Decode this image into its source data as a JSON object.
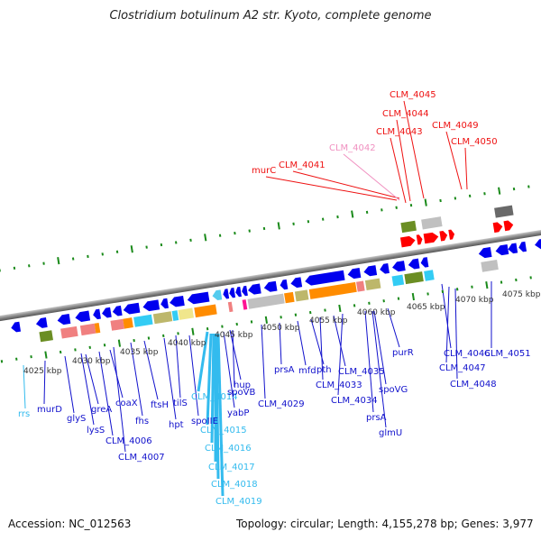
{
  "title": "Clostridium botulinum A2 str. Kyoto, complete genome",
  "footer": {
    "accession": "Accession: NC_012563",
    "summary": "Topology: circular; Length: 4,155,278 bp; Genes: 3,977"
  },
  "colors": {
    "backbone": "#8a8a8a",
    "ruler": "#1a8a1a",
    "forward_label": "#ee1111",
    "forward_pseudo_label": "#f090c0",
    "reverse_label": "#1111cc",
    "rna_label": "#33bbee"
  },
  "ruler_labels": [
    "4025 kbp",
    "4030 kbp",
    "4035 kbp",
    "4040 kbp",
    "4045 kbp",
    "4050 kbp",
    "4055 kbp",
    "4060 kbp",
    "4065 kbp",
    "4070 kbp",
    "4075 kbp"
  ],
  "forward_labels": [
    {
      "text": "murC",
      "color": "red"
    },
    {
      "text": "CLM_4041",
      "color": "red"
    },
    {
      "text": "CLM_4042",
      "color": "pink"
    },
    {
      "text": "CLM_4043",
      "color": "red"
    },
    {
      "text": "CLM_4044",
      "color": "red"
    },
    {
      "text": "CLM_4045",
      "color": "red"
    },
    {
      "text": "CLM_4049",
      "color": "red"
    },
    {
      "text": "CLM_4050",
      "color": "red"
    }
  ],
  "reverse_labels": [
    {
      "text": "rrs",
      "color": "cyan"
    },
    {
      "text": "murD",
      "color": "blue"
    },
    {
      "text": "glyS",
      "color": "blue"
    },
    {
      "text": "lysS",
      "color": "blue"
    },
    {
      "text": "greA",
      "color": "blue"
    },
    {
      "text": "CLM_4006",
      "color": "blue"
    },
    {
      "text": "coaX",
      "color": "blue"
    },
    {
      "text": "CLM_4007",
      "color": "blue"
    },
    {
      "text": "fhs",
      "color": "blue"
    },
    {
      "text": "ftsH",
      "color": "blue"
    },
    {
      "text": "hpt",
      "color": "blue"
    },
    {
      "text": "tilS",
      "color": "blue"
    },
    {
      "text": "spoIIE",
      "color": "blue"
    },
    {
      "text": "CLM_4014",
      "color": "cyan"
    },
    {
      "text": "CLM_4015",
      "color": "cyan"
    },
    {
      "text": "CLM_4016",
      "color": "cyan"
    },
    {
      "text": "CLM_4017",
      "color": "cyan"
    },
    {
      "text": "CLM_4018",
      "color": "cyan"
    },
    {
      "text": "CLM_4019",
      "color": "cyan"
    },
    {
      "text": "yabP",
      "color": "blue"
    },
    {
      "text": "hup",
      "color": "blue"
    },
    {
      "text": "spoVB",
      "color": "blue"
    },
    {
      "text": "CLM_4029",
      "color": "blue"
    },
    {
      "text": "prsA",
      "color": "blue"
    },
    {
      "text": "mfd",
      "color": "blue"
    },
    {
      "text": "pth",
      "color": "blue"
    },
    {
      "text": "CLM_4033",
      "color": "blue"
    },
    {
      "text": "CLM_4035",
      "color": "blue"
    },
    {
      "text": "CLM_4034",
      "color": "blue"
    },
    {
      "text": "spoVG",
      "color": "blue"
    },
    {
      "text": "prsA",
      "color": "blue"
    },
    {
      "text": "glmU",
      "color": "blue"
    },
    {
      "text": "purR",
      "color": "blue"
    },
    {
      "text": "CLM_4046",
      "color": "blue"
    },
    {
      "text": "CLM_4047",
      "color": "blue"
    },
    {
      "text": "CLM_4048",
      "color": "blue"
    },
    {
      "text": "CLM_4051",
      "color": "blue"
    }
  ]
}
